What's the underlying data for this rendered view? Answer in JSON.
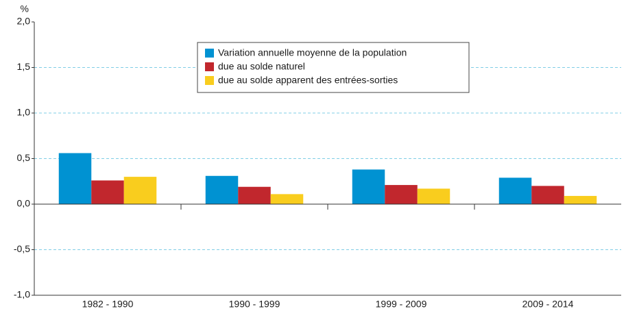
{
  "chart_data": {
    "type": "bar",
    "y_label": "%",
    "categories": [
      "1982 - 1990",
      "1990 - 1999",
      "1999 - 2009",
      "2009 - 2014"
    ],
    "series": [
      {
        "name": "Variation annuelle moyenne de la population",
        "color": "#0092d2",
        "values": [
          0.56,
          0.31,
          0.38,
          0.29
        ]
      },
      {
        "name": "due au solde naturel",
        "color": "#c1272d",
        "values": [
          0.26,
          0.19,
          0.21,
          0.2
        ]
      },
      {
        "name": "due au solde apparent des entrées-sorties",
        "color": "#f9cd1e",
        "values": [
          0.3,
          0.11,
          0.17,
          0.09
        ]
      }
    ],
    "ylim": [
      -1.0,
      2.0
    ],
    "yticks": [
      {
        "value": -1.0,
        "label": "-1,0"
      },
      {
        "value": -0.5,
        "label": "-0,5"
      },
      {
        "value": 0.0,
        "label": "0,0"
      },
      {
        "value": 0.5,
        "label": "0,5"
      },
      {
        "value": 1.0,
        "label": "1,0"
      },
      {
        "value": 1.5,
        "label": "1,5"
      },
      {
        "value": 2.0,
        "label": "2,0"
      }
    ],
    "grid": true,
    "legend_position": "top"
  }
}
